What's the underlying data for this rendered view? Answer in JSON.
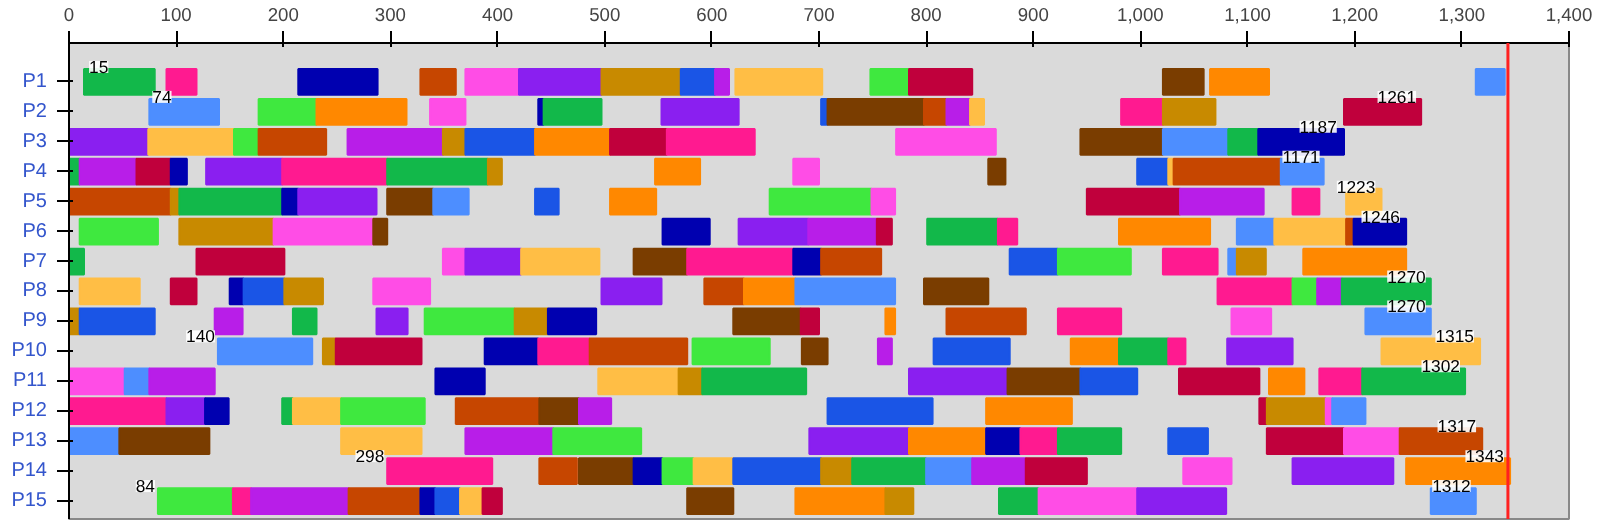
{
  "chart_data": {
    "type": "bar",
    "orientation": "horizontal",
    "categories": [
      "P1",
      "P2",
      "P3",
      "P4",
      "P5",
      "P6",
      "P7",
      "P8",
      "P9",
      "P10",
      "P11",
      "P12",
      "P13",
      "P14",
      "P15"
    ],
    "xlim": [
      0,
      1400
    ],
    "xticks": [
      0,
      100,
      200,
      300,
      400,
      500,
      600,
      700,
      800,
      900,
      {
        "value": 1000,
        "label": "1,000"
      },
      {
        "value": 1100,
        "label": "1,100"
      },
      {
        "value": 1200,
        "label": "1,200"
      },
      {
        "value": 1300,
        "label": "1,300"
      },
      {
        "value": 1400,
        "label": "1,400"
      }
    ],
    "grid": false,
    "series": [
      {
        "base": [
          14,
          75,
          0,
          0,
          0,
          10,
          0,
          10,
          0,
          139,
          0,
          0,
          0,
          297,
          83
        ],
        "values": [
          66,
          65,
          74,
          10,
          95,
          73,
          14,
          56,
          10,
          88,
          52,
          91,
          47,
          98,
          70
        ],
        "colors": [
          "#12b84a",
          "#4d8eff",
          "#8a1ff0",
          "#12b84a",
          "#c64600",
          "#3fe83f",
          "#12b84a",
          "#ffbe45",
          "#c88a00",
          "#4d8eff",
          "#ff4de6",
          "#ff1a90",
          "#4d8eff",
          "#ff1a90",
          "#3fe83f"
        ]
      },
      {
        "base": [
          91,
          177,
          74,
          10,
          95,
          103,
          119,
          95,
          10,
          237,
          52,
          91,
          47,
          439,
          153
        ],
        "values": [
          28,
          54,
          80,
          53,
          8,
          88,
          82,
          24,
          70,
          12,
          23,
          36,
          84,
          35,
          17
        ],
        "colors": [
          "#ff1a90",
          "#3fe83f",
          "#ffbe45",
          "#b81ee8",
          "#c88a00",
          "#c88a00",
          "#c0003c",
          "#c0003c",
          "#1a55e6",
          "#c88a00",
          "#4d8eff",
          "#8a1ff0",
          "#7a3d00",
          "#c64600",
          "#ff1a90"
        ]
      },
      {
        "base": [
          214,
          231,
          154,
          63,
          103,
          191,
          349,
          150,
          136,
          249,
          75,
          127,
          254,
          476,
          170
        ],
        "values": [
          74,
          84,
          23,
          32,
          96,
          93,
          21,
          13,
          26,
          80,
          61,
          22,
          75,
          51,
          91
        ],
        "colors": [
          "#0000b0",
          "#ff8800",
          "#3fe83f",
          "#c0003c",
          "#12b84a",
          "#ff4de6",
          "#ff4de6",
          "#0000b0",
          "#b81ee8",
          "#c0003c",
          "#b81ee8",
          "#0000b0",
          "#ffbe45",
          "#7a3d00",
          "#b81ee8"
        ]
      },
      {
        "base": [
          328,
          337,
          177,
          95,
          199,
          284,
          370,
          163,
          209,
          388,
          342,
          199,
          370,
          527,
          261
        ],
        "values": [
          33,
          33,
          63,
          15,
          15,
          13,
          52,
          38,
          22,
          50,
          46,
          10,
          82,
          27,
          67
        ],
        "colors": [
          "#c64600",
          "#ff4de6",
          "#c64600",
          "#0000b0",
          "#0000b0",
          "#7a3d00",
          "#8a1ff0",
          "#1a55e6",
          "#12b84a",
          "#0000b0",
          "#0000b0",
          "#12b84a",
          "#b81ee8",
          "#0000b0",
          "#c64600"
        ]
      },
      {
        "base": [
          370,
          438,
          260,
          128,
          214,
          554,
          422,
          201,
          287,
          438,
          494,
          209,
          452,
          554,
          328
        ],
        "values": [
          50,
          5,
          89,
          71,
          73,
          44,
          73,
          36,
          29,
          48,
          75,
          45,
          82,
          29,
          14
        ],
        "colors": [
          "#ff4de6",
          "#0000b0",
          "#b81ee8",
          "#8a1ff0",
          "#8a1ff0",
          "#0000b0",
          "#ffbe45",
          "#c88a00",
          "#8a1ff0",
          "#ff1a90",
          "#ffbe45",
          "#ffbe45",
          "#3fe83f",
          "#3fe83f",
          "#0000b0"
        ]
      },
      {
        "base": [
          420,
          443,
          349,
          199,
          297,
          625,
          527,
          284,
          332,
          486,
          569,
          254,
          691,
          583,
          342
        ],
        "values": [
          77,
          54,
          21,
          98,
          43,
          65,
          50,
          53,
          84,
          91,
          22,
          78,
          93,
          37,
          23
        ],
        "colors": [
          "#8a1ff0",
          "#12b84a",
          "#c88a00",
          "#ff1a90",
          "#7a3d00",
          "#8a1ff0",
          "#7a3d00",
          "#ff4de6",
          "#3fe83f",
          "#c64600",
          "#c88a00",
          "#3fe83f",
          "#8a1ff0",
          "#ffbe45",
          "#1a55e6"
        ]
      },
      {
        "base": [
          497,
          553,
          370,
          297,
          340,
          690,
          577,
          497,
          416,
          582,
          591,
          361,
          784,
          620,
          365
        ],
        "values": [
          74,
          72,
          65,
          94,
          33,
          64,
          99,
          56,
          31,
          72,
          97,
          78,
          72,
          82,
          21
        ],
        "colors": [
          "#c88a00",
          "#8a1ff0",
          "#1a55e6",
          "#12b84a",
          "#4d8eff",
          "#b81ee8",
          "#ff1a90",
          "#8a1ff0",
          "#c88a00",
          "#3fe83f",
          "#12b84a",
          "#c64600",
          "#ff8800",
          "#1a55e6",
          "#ffbe45"
        ]
      },
      {
        "base": [
          571,
          702,
          435,
          391,
          435,
          754,
          676,
          593,
          447,
          684,
          784,
          439,
          856,
          702,
          386
        ],
        "values": [
          32,
          6,
          70,
          13,
          22,
          14,
          26,
          37,
          45,
          24,
          92,
          37,
          32,
          29,
          18
        ],
        "colors": [
          "#1a55e6",
          "#1a55e6",
          "#ff8800",
          "#c88a00",
          "#1a55e6",
          "#c0003c",
          "#0000b0",
          "#c64600",
          "#0000b0",
          "#7a3d00",
          "#8a1ff0",
          "#7a3d00",
          "#0000b0",
          "#c88a00",
          "#c0003c"
        ]
      },
      {
        "base": [
          603,
          708,
          505,
          547,
          505,
          801,
          702,
          630,
          620,
          755,
          876,
          476,
          888,
          731,
          577
        ],
        "values": [
          13,
          90,
          53,
          42,
          43,
          66,
          56,
          48,
          63,
          13,
          68,
          30,
          35,
          69,
          43
        ],
        "colors": [
          "#b81ee8",
          "#7a3d00",
          "#c0003c",
          "#ff8800",
          "#ff8800",
          "#12b84a",
          "#c64600",
          "#ff8800",
          "#7a3d00",
          "#b81ee8",
          "#7a3d00",
          "#b81ee8",
          "#ff1a90",
          "#12b84a",
          "#7a3d00"
        ]
      },
      {
        "base": [
          622,
          798,
          558,
          676,
          654,
          867,
          878,
          678,
          683,
          807,
          944,
          708,
          923,
          800,
          678
        ],
        "values": [
          81,
          21,
          82,
          24,
          95,
          18,
          45,
          93,
          17,
          71,
          53,
          98,
          59,
          43,
          84
        ],
        "colors": [
          "#ffbe45",
          "#c64600",
          "#ff1a90",
          "#ff4de6",
          "#3fe83f",
          "#ff1a90",
          "#1a55e6",
          "#4d8eff",
          "#c0003c",
          "#1a55e6",
          "#1a55e6",
          "#1a55e6",
          "#12b84a",
          "#4d8eff",
          "#ff8800"
        ]
      },
      {
        "base": [
          748,
          819,
          772,
          858,
          749,
          980,
          923,
          798,
          762,
          935,
          1036,
          856,
          1026,
          843,
          762
        ],
        "values": [
          36,
          22,
          93,
          16,
          22,
          85,
          68,
          60,
          9,
          45,
          75,
          80,
          37,
          50,
          26
        ],
        "colors": [
          "#3fe83f",
          "#b81ee8",
          "#ff4de6",
          "#7a3d00",
          "#ff4de6",
          "#ff8800",
          "#3fe83f",
          "#7a3d00",
          "#ff8800",
          "#ff8800",
          "#c0003c",
          "#ff8800",
          "#1a55e6",
          "#b81ee8",
          "#c88a00"
        ]
      },
      {
        "base": [
          784,
          841,
          944,
          997,
          950,
          1090,
          1021,
          1072,
          819,
          980,
          1120,
          1111,
          1118,
          893,
          868
        ],
        "values": [
          59,
          13,
          77,
          29,
          87,
          35,
          51,
          70,
          74,
          46,
          33,
          7,
          72,
          57,
          37
        ],
        "colors": [
          "#c0003c",
          "#ffbe45",
          "#7a3d00",
          "#1a55e6",
          "#c0003c",
          "#4d8eff",
          "#ff1a90",
          "#ff1a90",
          "#c64600",
          "#12b84a",
          "#ff8800",
          "#c0003c",
          "#c0003c",
          "#c0003c",
          "#12b84a"
        ]
      },
      {
        "base": [
          1021,
          982,
          1021,
          1026,
          1037,
          1125,
          1082,
          1142,
          923,
          1026,
          1167,
          1118,
          1190,
          1040,
          905
        ],
        "values": [
          38,
          39,
          61,
          5,
          78,
          67,
          8,
          23,
          59,
          16,
          40,
          55,
          52,
          45,
          92
        ],
        "colors": [
          "#7a3d00",
          "#ff1a90",
          "#4d8eff",
          "#ffbe45",
          "#b81ee8",
          "#ffbe45",
          "#4d8eff",
          "#3fe83f",
          "#ff1a90",
          "#ff1a90",
          "#ff1a90",
          "#c88a00",
          "#ff4de6",
          "#ff4de6",
          "#ff4de6"
        ]
      },
      {
        "base": [
          1065,
          1021,
          1082,
          1031,
          1142,
          1192,
          1090,
          1165,
          1085,
          1081,
          1207,
          1173,
          1242,
          1142,
          997
        ],
        "values": [
          55,
          49,
          28,
          100,
          25,
          7,
          27,
          23,
          37,
          61,
          96,
          6,
          77,
          94,
          83
        ],
        "colors": [
          "#ff8800",
          "#c88a00",
          "#12b84a",
          "#c64600",
          "#ff1a90",
          "#c64600",
          "#c88a00",
          "#b81ee8",
          "#ff4de6",
          "#8a1ff0",
          "#12b84a",
          "#ff4de6",
          "#c64600",
          "#8a1ff0",
          "#8a1ff0"
        ]
      },
      {
        "base": [
          1313,
          1190,
          1110,
          1131,
          1192,
          1199,
          1152,
          1188,
          1210,
          1225,
          null,
          1179,
          null,
          1248,
          1271
        ],
        "values": [
          27,
          72,
          80,
          40,
          33,
          49,
          96,
          83,
          61,
          92,
          null,
          31,
          null,
          97,
          42
        ],
        "colors": [
          "#4d8eff",
          "#c0003c",
          "#0000b0",
          "#4d8eff",
          "#ffbe45",
          "#0000b0",
          "#ff8800",
          "#12b84a",
          "#4d8eff",
          "#ffbe45",
          null,
          "#4d8eff",
          null,
          "#ff8800",
          "#4d8eff"
        ]
      }
    ],
    "ref_lines": [
      {
        "axis": "x",
        "value": 1343,
        "color": "#ff2020"
      }
    ],
    "annotations": [
      {
        "text": "15",
        "x": 15,
        "y": "P1"
      },
      {
        "text": "74",
        "x": 74,
        "y": "P2"
      },
      {
        "text": "140",
        "x": 140,
        "y": "P10"
      },
      {
        "text": "298",
        "x": 298,
        "y": "P14"
      },
      {
        "text": "84",
        "x": 84,
        "y": "P15"
      },
      {
        "text": "1261",
        "x": 1261,
        "y": "P2"
      },
      {
        "text": "1187",
        "x": 1187,
        "y": "P3"
      },
      {
        "text": "1171",
        "x": 1171,
        "y": "P4"
      },
      {
        "text": "1223",
        "x": 1223,
        "y": "P5"
      },
      {
        "text": "1246",
        "x": 1246,
        "y": "P6"
      },
      {
        "text": "1270",
        "x": 1270,
        "y": "P8"
      },
      {
        "text": "1270",
        "x": 1270,
        "y": "P9"
      },
      {
        "text": "1315",
        "x": 1315,
        "y": "P10"
      },
      {
        "text": "1302",
        "x": 1302,
        "y": "P11"
      },
      {
        "text": "1317",
        "x": 1317,
        "y": "P13"
      },
      {
        "text": "1343",
        "x": 1343,
        "y": "P14"
      },
      {
        "text": "1312",
        "x": 1312,
        "y": "P15"
      }
    ]
  }
}
